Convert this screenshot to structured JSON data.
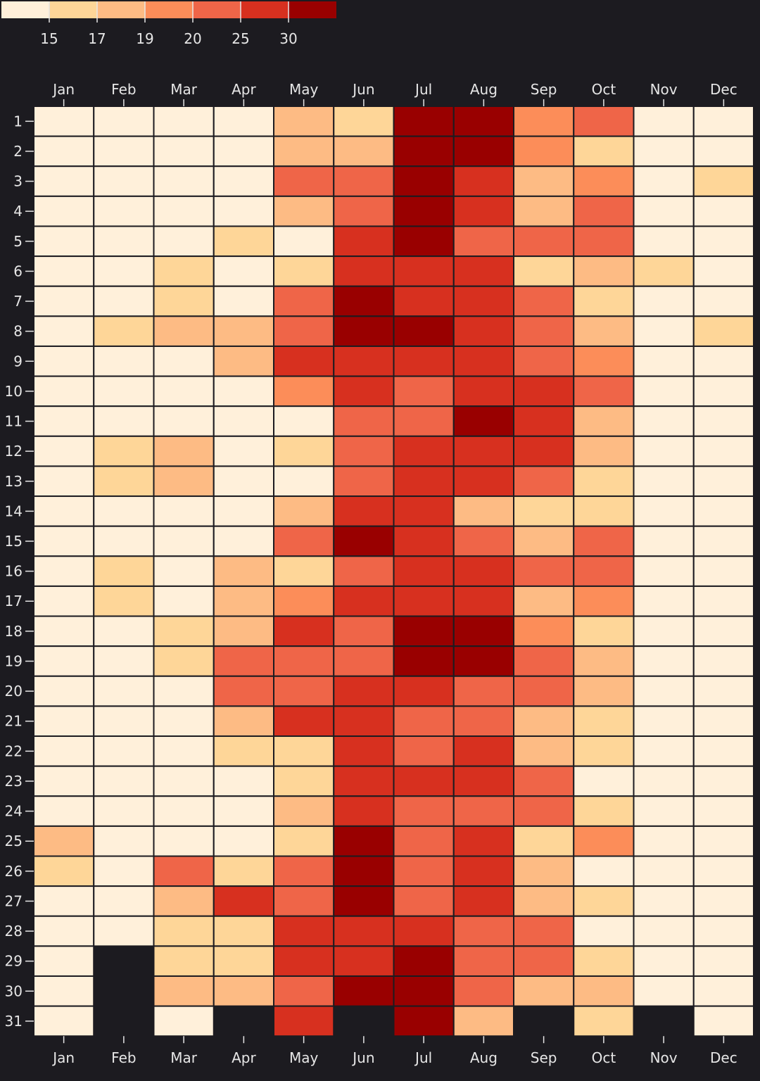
{
  "chart_data": {
    "type": "heatmap",
    "title": "",
    "xlabel": "",
    "ylabel": "",
    "months": [
      "Jan",
      "Feb",
      "Mar",
      "Apr",
      "May",
      "Jun",
      "Jul",
      "Aug",
      "Sep",
      "Oct",
      "Nov",
      "Dec"
    ],
    "days": [
      1,
      2,
      3,
      4,
      5,
      6,
      7,
      8,
      9,
      10,
      11,
      12,
      13,
      14,
      15,
      16,
      17,
      18,
      19,
      20,
      21,
      22,
      23,
      24,
      25,
      26,
      27,
      28,
      29,
      30,
      31
    ],
    "legend": {
      "position": "top-left",
      "thresholds": [
        15,
        17,
        19,
        20,
        25,
        30
      ],
      "colors": [
        "#fff0da",
        "#fed698",
        "#fdbb84",
        "#fc8d59",
        "#ef6548",
        "#d7301f",
        "#990000"
      ]
    },
    "missing_color": "#1c1b20",
    "grid_color": "#1c1b20",
    "values_by_month": {
      "Jan": [
        14,
        14,
        14,
        14,
        14,
        14,
        14,
        14,
        14,
        14,
        14,
        14,
        14,
        14,
        14,
        14,
        14,
        14,
        14,
        14,
        14,
        14,
        14,
        14,
        18,
        16,
        14,
        14,
        14,
        14,
        14
      ],
      "Feb": [
        14,
        14,
        14,
        14,
        14,
        14,
        14,
        16,
        14,
        14,
        14,
        16,
        16,
        14,
        14,
        16,
        16,
        14,
        14,
        14,
        14,
        14,
        14,
        14,
        14,
        14,
        14,
        14,
        null,
        null,
        null
      ],
      "Mar": [
        14,
        14,
        14,
        14,
        14,
        16,
        16,
        18,
        14,
        14,
        14,
        18,
        18,
        14,
        14,
        14,
        14,
        16,
        16,
        14,
        14,
        14,
        14,
        14,
        14,
        22,
        18,
        16,
        16,
        18,
        14
      ],
      "Apr": [
        14,
        14,
        14,
        14,
        16,
        14,
        14,
        18,
        18,
        14,
        14,
        14,
        14,
        14,
        14,
        18,
        18,
        18,
        22,
        22,
        18,
        16,
        14,
        14,
        14,
        16,
        27,
        16,
        16,
        18,
        null
      ],
      "May": [
        18,
        18,
        22,
        18,
        14,
        16,
        22,
        22,
        27,
        19.5,
        14,
        16,
        14,
        18,
        22,
        16,
        19.5,
        27,
        22,
        22,
        27,
        16,
        16,
        18,
        16,
        22,
        22,
        27,
        27,
        22,
        27
      ],
      "Jun": [
        16,
        18,
        22,
        22,
        27,
        27,
        32,
        32,
        27,
        27,
        22,
        22,
        22,
        27,
        32,
        22,
        27,
        22,
        22,
        27,
        27,
        27,
        27,
        27,
        32,
        32,
        32,
        27,
        27,
        32,
        null
      ],
      "Jul": [
        32,
        32,
        32,
        32,
        32,
        27,
        27,
        32,
        27,
        22,
        22,
        27,
        27,
        27,
        27,
        27,
        27,
        32,
        32,
        27,
        22,
        22,
        27,
        22,
        22,
        22,
        22,
        27,
        32,
        32,
        32
      ],
      "Aug": [
        32,
        32,
        27,
        27,
        22,
        27,
        27,
        27,
        27,
        27,
        32,
        27,
        27,
        18,
        22,
        27,
        27,
        32,
        32,
        22,
        22,
        27,
        27,
        22,
        27,
        27,
        27,
        22,
        22,
        22,
        18
      ],
      "Sep": [
        19.5,
        19.5,
        18,
        18,
        22,
        16,
        22,
        22,
        22,
        27,
        27,
        27,
        22,
        16,
        18,
        22,
        18,
        19.5,
        22,
        22,
        18,
        18,
        22,
        22,
        16,
        18,
        18,
        22,
        22,
        18,
        null
      ],
      "Oct": [
        22,
        16,
        19.5,
        22,
        22,
        18,
        16,
        18,
        19.5,
        22,
        18,
        18,
        16,
        16,
        22,
        22,
        19.5,
        16,
        18,
        18,
        16,
        16,
        14,
        16,
        19.5,
        14,
        16,
        14,
        16,
        18,
        16
      ],
      "Nov": [
        14,
        14,
        14,
        14,
        14,
        16,
        14,
        14,
        14,
        14,
        14,
        14,
        14,
        14,
        14,
        14,
        14,
        14,
        14,
        14,
        14,
        14,
        14,
        14,
        14,
        14,
        14,
        14,
        14,
        14,
        null
      ],
      "Dec": [
        14,
        14,
        16,
        14,
        14,
        14,
        14,
        16,
        14,
        14,
        14,
        14,
        14,
        14,
        14,
        14,
        14,
        14,
        14,
        14,
        14,
        14,
        14,
        14,
        14,
        14,
        14,
        14,
        14,
        14,
        14
      ]
    }
  }
}
